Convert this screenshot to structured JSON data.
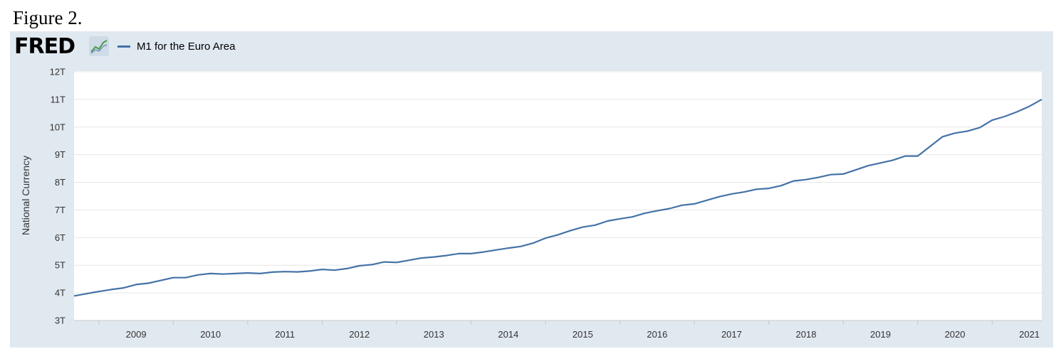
{
  "figure": {
    "caption": "Figure 2."
  },
  "header": {
    "logo_text": "FRED",
    "logo_icon": "line-graph-icon"
  },
  "colors": {
    "panel_bg": "#e1e9f0",
    "plot_bg": "#ffffff",
    "series": "#4572a7",
    "grid": "#e6e6e6"
  },
  "chart_data": {
    "type": "line",
    "title": "",
    "xlabel": "",
    "ylabel": "National Currency",
    "xlim": [
      "2008-09",
      "2021-09"
    ],
    "ylim": [
      3,
      12
    ],
    "y_unit_suffix": "T",
    "y_ticks": [
      "3T",
      "4T",
      "5T",
      "6T",
      "7T",
      "8T",
      "9T",
      "10T",
      "11T",
      "12T"
    ],
    "x_ticks": [
      "2009",
      "2010",
      "2011",
      "2012",
      "2013",
      "2014",
      "2015",
      "2016",
      "2017",
      "2018",
      "2019",
      "2020",
      "2021"
    ],
    "grid": "horizontal",
    "legend_position": "top-left",
    "series": [
      {
        "name": "M1 for the Euro Area",
        "points": [
          [
            "2008-09",
            3.89
          ],
          [
            "2008-11",
            3.97
          ],
          [
            "2009-01",
            4.05
          ],
          [
            "2009-03",
            4.12
          ],
          [
            "2009-05",
            4.18
          ],
          [
            "2009-07",
            4.3
          ],
          [
            "2009-09",
            4.35
          ],
          [
            "2009-11",
            4.45
          ],
          [
            "2010-01",
            4.55
          ],
          [
            "2010-03",
            4.55
          ],
          [
            "2010-05",
            4.65
          ],
          [
            "2010-07",
            4.7
          ],
          [
            "2010-09",
            4.68
          ],
          [
            "2010-11",
            4.7
          ],
          [
            "2011-01",
            4.72
          ],
          [
            "2011-03",
            4.7
          ],
          [
            "2011-05",
            4.75
          ],
          [
            "2011-07",
            4.77
          ],
          [
            "2011-09",
            4.76
          ],
          [
            "2011-11",
            4.79
          ],
          [
            "2012-01",
            4.85
          ],
          [
            "2012-03",
            4.82
          ],
          [
            "2012-05",
            4.88
          ],
          [
            "2012-07",
            4.98
          ],
          [
            "2012-09",
            5.02
          ],
          [
            "2012-11",
            5.12
          ],
          [
            "2013-01",
            5.1
          ],
          [
            "2013-03",
            5.18
          ],
          [
            "2013-05",
            5.26
          ],
          [
            "2013-07",
            5.3
          ],
          [
            "2013-09",
            5.35
          ],
          [
            "2013-11",
            5.42
          ],
          [
            "2014-01",
            5.42
          ],
          [
            "2014-03",
            5.48
          ],
          [
            "2014-05",
            5.55
          ],
          [
            "2014-07",
            5.62
          ],
          [
            "2014-09",
            5.68
          ],
          [
            "2014-11",
            5.8
          ],
          [
            "2015-01",
            5.98
          ],
          [
            "2015-03",
            6.1
          ],
          [
            "2015-05",
            6.25
          ],
          [
            "2015-07",
            6.38
          ],
          [
            "2015-09",
            6.45
          ],
          [
            "2015-11",
            6.6
          ],
          [
            "2016-01",
            6.68
          ],
          [
            "2016-03",
            6.75
          ],
          [
            "2016-05",
            6.88
          ],
          [
            "2016-07",
            6.97
          ],
          [
            "2016-09",
            7.05
          ],
          [
            "2016-11",
            7.17
          ],
          [
            "2017-01",
            7.22
          ],
          [
            "2017-03",
            7.35
          ],
          [
            "2017-05",
            7.48
          ],
          [
            "2017-07",
            7.58
          ],
          [
            "2017-09",
            7.65
          ],
          [
            "2017-11",
            7.75
          ],
          [
            "2018-01",
            7.78
          ],
          [
            "2018-03",
            7.88
          ],
          [
            "2018-05",
            8.05
          ],
          [
            "2018-07",
            8.1
          ],
          [
            "2018-09",
            8.18
          ],
          [
            "2018-11",
            8.28
          ],
          [
            "2019-01",
            8.3
          ],
          [
            "2019-03",
            8.45
          ],
          [
            "2019-05",
            8.6
          ],
          [
            "2019-07",
            8.7
          ],
          [
            "2019-09",
            8.8
          ],
          [
            "2019-11",
            8.95
          ],
          [
            "2020-01",
            8.95
          ],
          [
            "2020-03",
            9.3
          ],
          [
            "2020-05",
            9.65
          ],
          [
            "2020-07",
            9.78
          ],
          [
            "2020-09",
            9.85
          ],
          [
            "2020-11",
            9.98
          ],
          [
            "2021-01",
            10.25
          ],
          [
            "2021-03",
            10.38
          ],
          [
            "2021-05",
            10.55
          ],
          [
            "2021-07",
            10.75
          ],
          [
            "2021-09",
            11.0
          ]
        ]
      }
    ]
  }
}
